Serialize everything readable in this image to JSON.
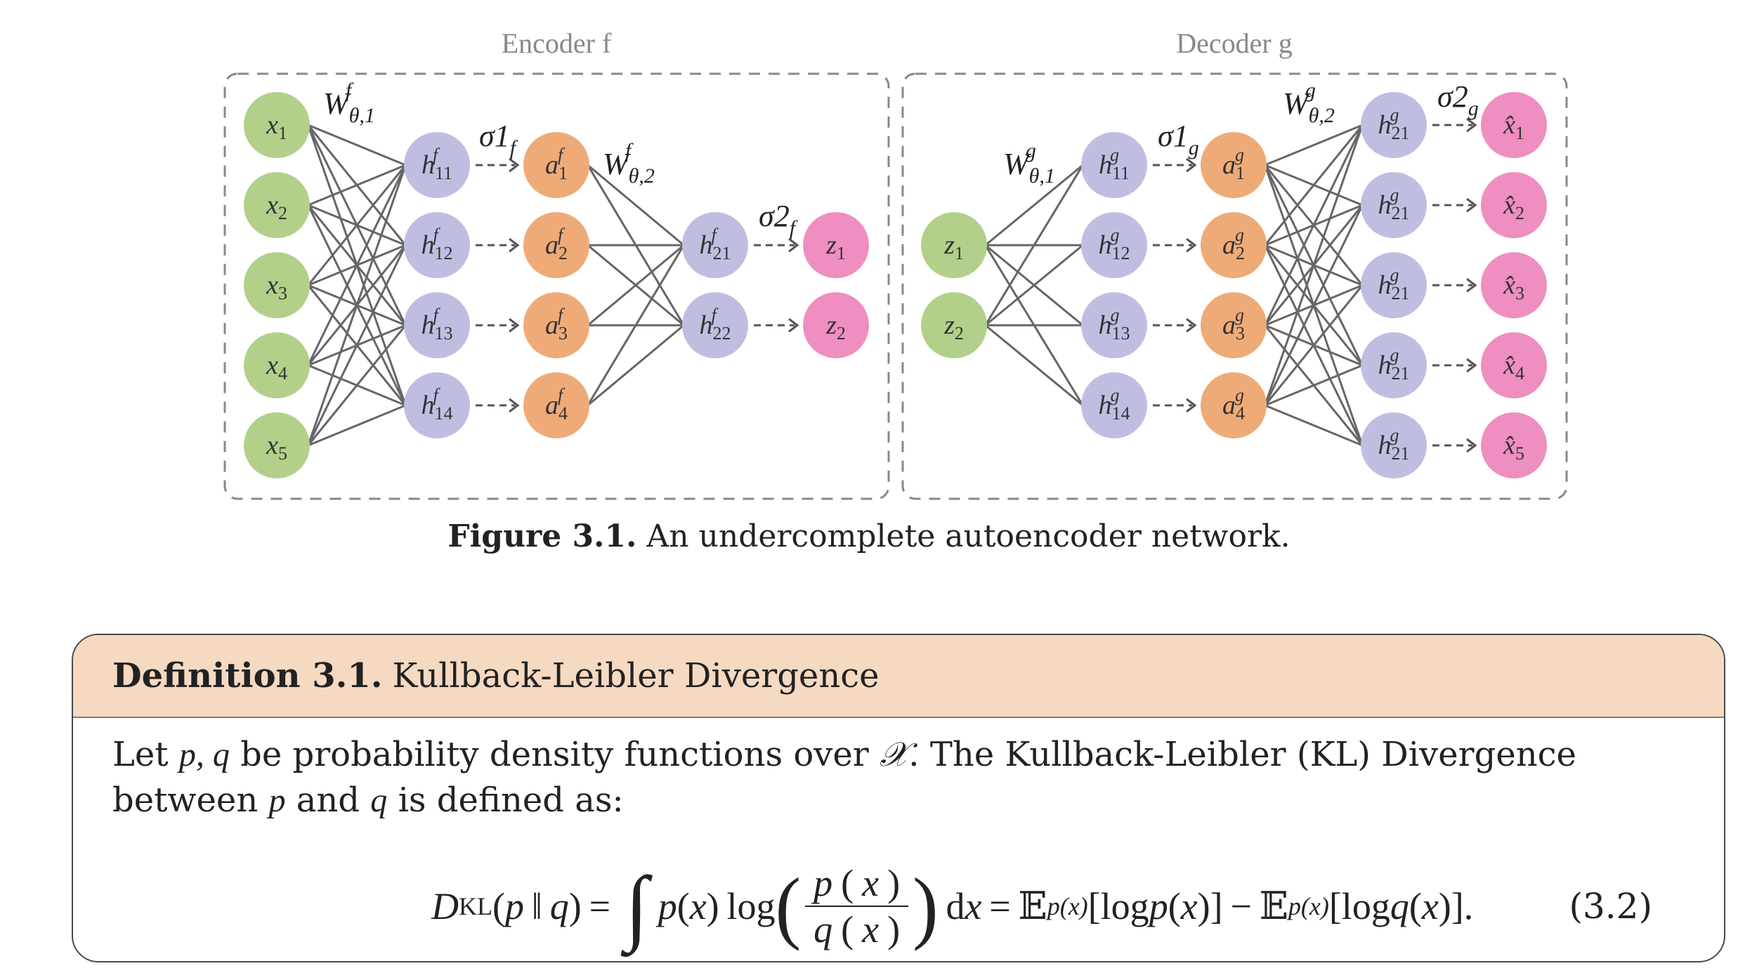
{
  "figure": {
    "encoder_title": "Encoder f",
    "decoder_title": "Decoder g",
    "caption_label": "Figure 3.1.",
    "caption_text": "An undercomplete autoencoder network.",
    "colors": {
      "input": "#b2d08a",
      "hidden": "#c0bee0",
      "activation": "#eeab77",
      "output": "#ef8ec0",
      "edge": "#666666",
      "frame": "#888888",
      "title_text": "#888888"
    },
    "encoder": {
      "inputs": [
        "x1",
        "x2",
        "x3",
        "x4",
        "x5"
      ],
      "hidden1": [
        "h11 f",
        "h12 f",
        "h13 f",
        "h14 f"
      ],
      "act1": [
        "a1 f",
        "a2 f",
        "a3 f",
        "a4 f"
      ],
      "hidden2": [
        "h21 f",
        "h22 f"
      ],
      "outputs": [
        "z1",
        "z2"
      ],
      "weight1": "W θ,1 f",
      "weight2": "W θ,2 f",
      "sigma1": "σ1 f",
      "sigma2": "σ2 f"
    },
    "decoder": {
      "inputs": [
        "z1",
        "z2"
      ],
      "hidden1": [
        "h11 g",
        "h12 g",
        "h13 g",
        "h14 g"
      ],
      "act1": [
        "a1 g",
        "a2 g",
        "a3 g",
        "a4 g"
      ],
      "hidden2": [
        "h21 g",
        "h21 g",
        "h21 g",
        "h21 g",
        "h21 g"
      ],
      "outputs": [
        "x̂1",
        "x̂2",
        "x̂3",
        "x̂4",
        "x̂5"
      ],
      "weight1": "W θ,1 g",
      "weight2": "W θ,2 g",
      "sigma1": "σ1 g",
      "sigma2": "σ2 g"
    }
  },
  "definition": {
    "label": "Definition 3.1.",
    "title": "Kullback-Leibler Divergence",
    "body_1": "Let",
    "body_vars": "p, q",
    "body_2": "be probability density functions over",
    "body_space": "𝒳",
    "body_3": ". The Kullback-Leibler (KL) Divergence between",
    "body_p": "p",
    "body_and": "and",
    "body_q": "q",
    "body_4": "is defined as:",
    "equation_number": "(3.2)"
  }
}
